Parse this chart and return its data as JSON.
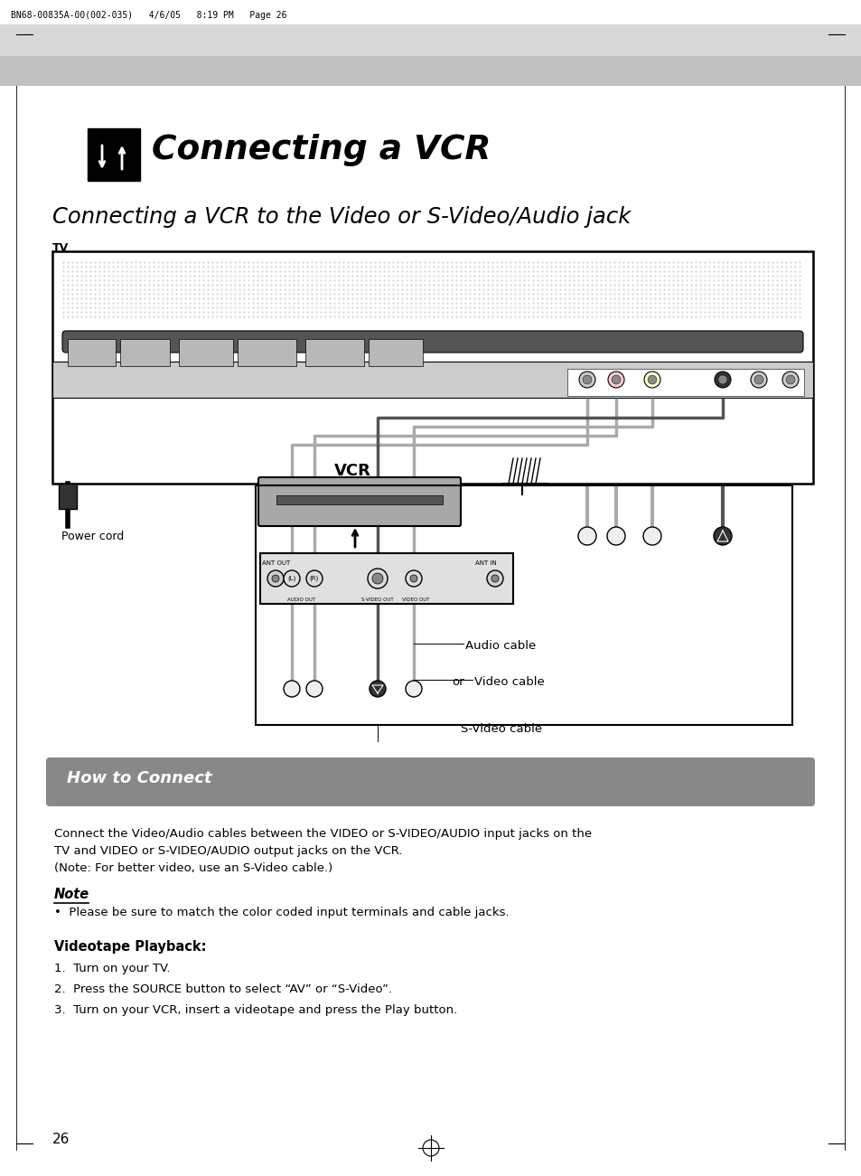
{
  "page_header": "BN68-00835A-00(002-035)   4/6/05   8:19 PM   Page 26",
  "title": "Connecting a VCR",
  "subtitle": "Connecting a VCR to the Video or S-Video/Audio jack",
  "tv_label": "TV",
  "vcr_label": "VCR",
  "power_cord_label": "Power cord",
  "audio_cable_label": "Audio cable",
  "video_cable_label": "Video cable",
  "svideo_cable_label": "S-Video cable",
  "or_label": "or",
  "how_to_connect_title": "How to Connect",
  "how_to_connect_line1": "Connect the Video/Audio cables between the VIDEO or S-VIDEO/AUDIO input jacks on the",
  "how_to_connect_line2": "TV and VIDEO or S-VIDEO/AUDIO output jacks on the VCR.",
  "how_to_connect_line3": "(Note: For better video, use an S-Video cable.)",
  "note_title": "Note",
  "note_bullet": "Please be sure to match the color coded input terminals and cable jacks.",
  "videotape_title": "Videotape Playback:",
  "step1": "Turn on your TV.",
  "step2": "Press the SOURCE button to select “AV” or “S-Video”.",
  "step3": "Turn on your VCR, insert a videotape and press the Play button.",
  "page_number": "26",
  "bg_color": "#ffffff",
  "header_bg": "#c8c8c8",
  "how_to_bg": "#888888",
  "body_text_color": "#000000"
}
